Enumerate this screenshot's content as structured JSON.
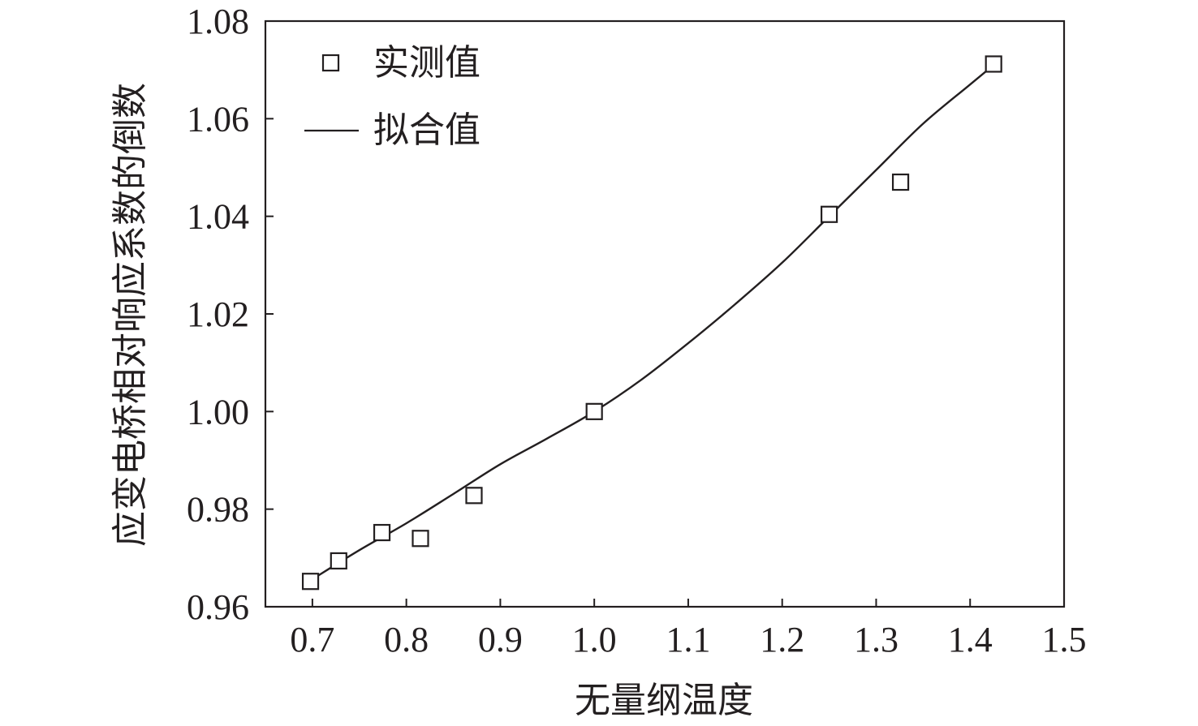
{
  "chart_data": {
    "type": "scatter",
    "xlabel": "无量纲温度",
    "ylabel": "应变电桥相对响应系数的倒数",
    "xlim": [
      0.65,
      1.5
    ],
    "ylim": [
      0.96,
      1.08
    ],
    "xticks": [
      0.7,
      0.8,
      0.9,
      1.0,
      1.1,
      1.2,
      1.3,
      1.4,
      1.5
    ],
    "xtick_labels": [
      "0.7",
      "0.8",
      "0.9",
      "1.0",
      "1.1",
      "1.2",
      "1.3",
      "1.4",
      "1.5"
    ],
    "yticks": [
      0.96,
      0.98,
      1.0,
      1.02,
      1.04,
      1.06,
      1.08
    ],
    "ytick_labels": [
      "0.96",
      "0.98",
      "1.00",
      "1.02",
      "1.04",
      "1.06",
      "1.08"
    ],
    "grid": false,
    "legend_position": "top-left",
    "series": [
      {
        "name": "实测值",
        "kind": "scatter",
        "marker": "open-square",
        "x": [
          0.698,
          0.728,
          0.774,
          0.815,
          0.872,
          1.0,
          1.25,
          1.326,
          1.425
        ],
        "y": [
          0.9652,
          0.9694,
          0.9752,
          0.974,
          0.9828,
          1.0,
          1.0404,
          1.047,
          1.0712
        ]
      },
      {
        "name": "拟合值",
        "kind": "line",
        "x": [
          0.698,
          0.75,
          0.8,
          0.85,
          0.9,
          0.95,
          1.0,
          1.05,
          1.1,
          1.15,
          1.2,
          1.25,
          1.3,
          1.35,
          1.4,
          1.425
        ],
        "y": [
          0.9654,
          0.9716,
          0.9771,
          0.9831,
          0.9892,
          0.9945,
          1.0,
          1.0065,
          1.014,
          1.022,
          1.0305,
          1.04,
          1.0495,
          1.059,
          1.067,
          1.071
        ]
      }
    ],
    "colors": {
      "ink": "#231f20",
      "background": "#ffffff"
    }
  }
}
